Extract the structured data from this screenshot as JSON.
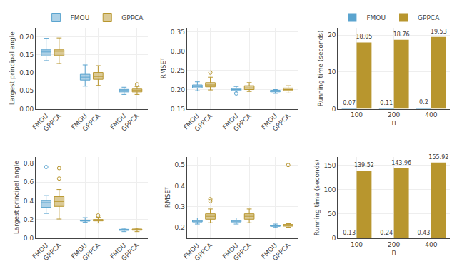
{
  "chart_data": [
    {
      "type": "box",
      "ylabel": "Largest principal angle",
      "categories": [
        "FMOU",
        "GPPCA",
        "FMOU",
        "GPPCA",
        "FMOU",
        "GPPCA"
      ],
      "series": [
        {
          "name": "FMOU",
          "color": "#5BA4CF",
          "boxes": [
            {
              "med": 0.158,
              "q1": 0.147,
              "q3": 0.164,
              "whislo": 0.134,
              "whishi": 0.196,
              "fliers": []
            },
            {
              "med": 0.088,
              "q1": 0.08,
              "q3": 0.096,
              "whislo": 0.063,
              "whishi": 0.122,
              "fliers": []
            },
            {
              "med": 0.051,
              "q1": 0.047,
              "q3": 0.054,
              "whislo": 0.04,
              "whishi": 0.06,
              "fliers": []
            }
          ]
        },
        {
          "name": "GPPCA",
          "color": "#B8962E",
          "boxes": [
            {
              "med": 0.16,
              "q1": 0.148,
              "q3": 0.164,
              "whislo": 0.126,
              "whishi": 0.197,
              "fliers": []
            },
            {
              "med": 0.09,
              "q1": 0.082,
              "q3": 0.101,
              "whislo": 0.065,
              "whishi": 0.12,
              "fliers": []
            },
            {
              "med": 0.051,
              "q1": 0.047,
              "q3": 0.055,
              "whislo": 0.04,
              "whishi": 0.062,
              "fliers": [
                0.068
              ]
            }
          ]
        }
      ],
      "ylim": [
        0.0,
        0.225
      ],
      "yticks": [
        {
          "value": 0.0,
          "label": "0.00"
        },
        0.05,
        {
          "value": 0.1,
          "label": "0.10"
        },
        0.15,
        {
          "value": 0.2,
          "label": "0.20"
        }
      ],
      "grid": true,
      "legend": "upper right"
    },
    {
      "type": "box",
      "ylabel": "RMSEᵀ",
      "categories": [
        "FMOU",
        "GPPCA",
        "FMOU",
        "GPPCA",
        "FMOU",
        "GPPCA"
      ],
      "series": [
        {
          "name": "FMOU",
          "color": "#5BA4CF",
          "boxes": [
            {
              "med": 0.208,
              "q1": 0.204,
              "q3": 0.212,
              "whislo": 0.197,
              "whishi": 0.22,
              "fliers": []
            },
            {
              "med": 0.2,
              "q1": 0.197,
              "q3": 0.203,
              "whislo": 0.191,
              "whishi": 0.208,
              "fliers": [
                0.19
              ]
            },
            {
              "med": 0.196,
              "q1": 0.194,
              "q3": 0.198,
              "whislo": 0.19,
              "whishi": 0.2,
              "fliers": []
            }
          ]
        },
        {
          "name": "GPPCA",
          "color": "#B8962E",
          "boxes": [
            {
              "med": 0.212,
              "q1": 0.207,
              "q3": 0.218,
              "whislo": 0.199,
              "whishi": 0.232,
              "fliers": [
                0.244
              ]
            },
            {
              "med": 0.204,
              "q1": 0.2,
              "q3": 0.21,
              "whislo": 0.195,
              "whishi": 0.218,
              "fliers": []
            },
            {
              "med": 0.2,
              "q1": 0.197,
              "q3": 0.204,
              "whislo": 0.191,
              "whishi": 0.21,
              "fliers": []
            }
          ]
        }
      ],
      "ylim": [
        0.15,
        0.36
      ],
      "yticks": [
        0.15,
        {
          "value": 0.2,
          "label": "0.20"
        },
        0.25,
        {
          "value": 0.3,
          "label": "0.30"
        },
        0.35
      ],
      "grid": true
    },
    {
      "type": "bar",
      "xlabel": "n",
      "ylabel": "Running time (seconds)",
      "categories": [
        "100",
        "200",
        "400"
      ],
      "series": [
        {
          "name": "FMOU",
          "color": "#5BA4CF",
          "values": [
            0.07,
            0.11,
            0.2
          ]
        },
        {
          "name": "GPPCA",
          "color": "#B8962E",
          "values": [
            18.05,
            18.76,
            19.53
          ]
        }
      ],
      "ylim": [
        0,
        22
      ],
      "yticks": [
        0,
        10,
        20
      ],
      "grid": true,
      "data_labels": true,
      "legend": "upper left"
    },
    {
      "type": "box",
      "ylabel": "Largest principal angle",
      "categories": [
        "FMOU",
        "GPPCA",
        "FMOU",
        "GPPCA",
        "FMOU",
        "GPPCA"
      ],
      "series": [
        {
          "name": "FMOU",
          "color": "#5BA4CF",
          "boxes": [
            {
              "med": 0.38,
              "q1": 0.33,
              "q3": 0.405,
              "whislo": 0.265,
              "whishi": 0.455,
              "fliers": [
                0.76
              ]
            },
            {
              "med": 0.187,
              "q1": 0.183,
              "q3": 0.192,
              "whislo": 0.17,
              "whishi": 0.22,
              "fliers": []
            },
            {
              "med": 0.09,
              "q1": 0.084,
              "q3": 0.096,
              "whislo": 0.071,
              "whishi": 0.106,
              "fliers": []
            }
          ]
        },
        {
          "name": "GPPCA",
          "color": "#B8962E",
          "boxes": [
            {
              "med": 0.393,
              "q1": 0.34,
              "q3": 0.445,
              "whislo": 0.205,
              "whishi": 0.52,
              "fliers": [
                0.637,
                0.748
              ]
            },
            {
              "med": 0.191,
              "q1": 0.185,
              "q3": 0.2,
              "whislo": 0.163,
              "whishi": 0.225,
              "fliers": [
                0.243
              ]
            },
            {
              "med": 0.092,
              "q1": 0.086,
              "q3": 0.099,
              "whislo": 0.071,
              "whishi": 0.107,
              "fliers": []
            }
          ]
        }
      ],
      "ylim": [
        0.0,
        0.87
      ],
      "yticks": [
        {
          "value": 0.0,
          "label": "0.0"
        },
        0.2,
        0.4,
        0.6,
        0.8
      ],
      "grid": true
    },
    {
      "type": "box",
      "ylabel": "RMSEᵀ",
      "categories": [
        "FMOU",
        "GPPCA",
        "FMOU",
        "GPPCA",
        "FMOU",
        "GPPCA"
      ],
      "series": [
        {
          "name": "FMOU",
          "color": "#5BA4CF",
          "boxes": [
            {
              "med": 0.232,
              "q1": 0.228,
              "q3": 0.236,
              "whislo": 0.218,
              "whishi": 0.247,
              "fliers": []
            },
            {
              "med": 0.232,
              "q1": 0.228,
              "q3": 0.236,
              "whislo": 0.218,
              "whishi": 0.247,
              "fliers": []
            },
            {
              "med": 0.21,
              "q1": 0.207,
              "q3": 0.213,
              "whislo": 0.202,
              "whishi": 0.218,
              "fliers": []
            }
          ]
        },
        {
          "name": "GPPCA",
          "color": "#B8962E",
          "boxes": [
            {
              "med": 0.255,
              "q1": 0.241,
              "q3": 0.267,
              "whislo": 0.224,
              "whishi": 0.29,
              "fliers": [
                0.337,
                0.328
              ]
            },
            {
              "med": 0.255,
              "q1": 0.241,
              "q3": 0.267,
              "whislo": 0.224,
              "whishi": 0.29,
              "fliers": []
            },
            {
              "med": 0.212,
              "q1": 0.208,
              "q3": 0.216,
              "whislo": 0.203,
              "whishi": 0.22,
              "fliers": [
                0.5
              ]
            }
          ]
        }
      ],
      "ylim": [
        0.15,
        0.54
      ],
      "yticks": [
        0.2,
        0.3,
        0.4,
        0.5
      ],
      "grid": true
    },
    {
      "type": "bar",
      "xlabel": "n",
      "ylabel": "Running time (seconds)",
      "categories": [
        "100",
        "200",
        "400"
      ],
      "series": [
        {
          "name": "FMOU",
          "color": "#5BA4CF",
          "values": [
            0.13,
            0.24,
            0.43
          ]
        },
        {
          "name": "GPPCA",
          "color": "#B8962E",
          "values": [
            139.52,
            143.96,
            155.92
          ]
        }
      ],
      "ylim": [
        0,
        168
      ],
      "yticks": [
        0,
        50,
        100,
        150
      ],
      "grid": true,
      "data_labels": true
    }
  ]
}
